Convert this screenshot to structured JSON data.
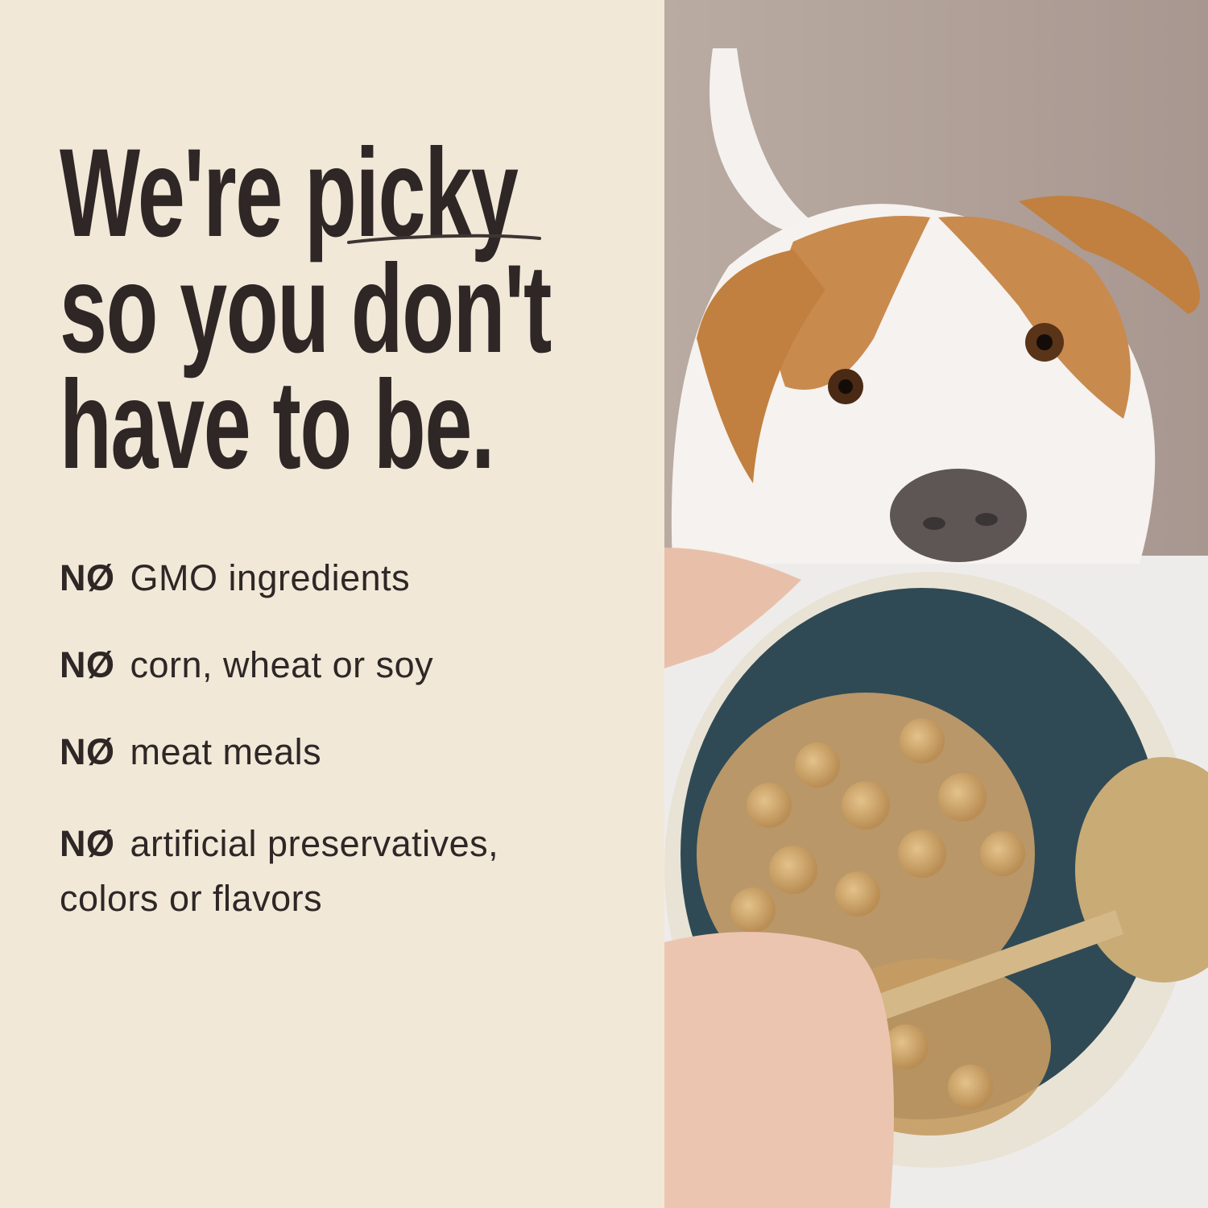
{
  "headline": {
    "line1_pre": "We're ",
    "line1_emph": "picky",
    "line2": "so you don't",
    "line3": "have to be."
  },
  "bullets": [
    {
      "prefix": "NØ",
      "text": "GMO ingredients"
    },
    {
      "prefix": "NØ",
      "text": "corn, wheat or soy"
    },
    {
      "prefix": "NØ",
      "text": "meat meals"
    },
    {
      "prefix": "NØ",
      "text": "artificial preservatives,",
      "text2": "colors or flavors"
    }
  ],
  "colors": {
    "background": "#f2e8d8",
    "text": "#2e2726"
  }
}
